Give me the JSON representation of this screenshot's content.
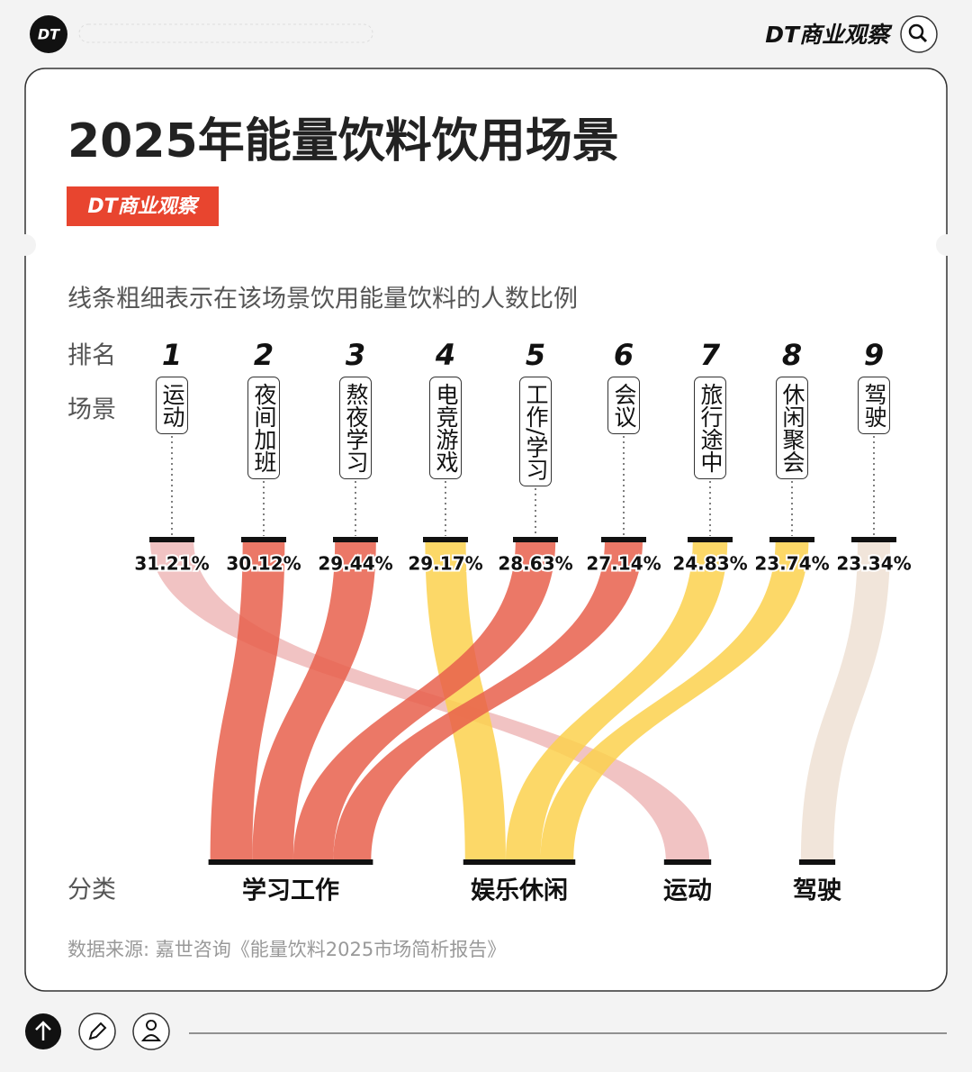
{
  "header": {
    "logo": "DT",
    "brand": "DT商业观察"
  },
  "chart_data": {
    "type": "flow",
    "title": "2025年能量饮料饮用场景",
    "badge": "DT商业观察",
    "subtitle": "线条粗细表示在该场景饮用能量饮料的人数比例",
    "rank_label": "排名",
    "scene_label": "场景",
    "category_label": "分类",
    "ranks": [
      1,
      2,
      3,
      4,
      5,
      6,
      7,
      8,
      9
    ],
    "categories": [
      "运动",
      "夜间加班",
      "熬夜学习",
      "电竞游戏",
      "工作/学习",
      "会议",
      "旅行途中",
      "休闲聚会",
      "驾驶"
    ],
    "values": [
      31.21,
      30.12,
      29.44,
      29.17,
      28.63,
      27.14,
      24.83,
      23.74,
      23.34
    ],
    "value_labels": [
      "31.21%",
      "30.12%",
      "29.44%",
      "29.17%",
      "28.63%",
      "27.14%",
      "24.83%",
      "23.74%",
      "23.34%"
    ],
    "scene_groups": [
      "运动",
      "学习工作",
      "学习工作",
      "娱乐休闲",
      "学习工作",
      "学习工作",
      "娱乐休闲",
      "娱乐休闲",
      "驾驶"
    ],
    "groups": [
      {
        "name": "学习工作",
        "color": "#e8604c"
      },
      {
        "name": "娱乐休闲",
        "color": "#fcd14d"
      },
      {
        "name": "运动",
        "color": "#efb9b9"
      },
      {
        "name": "驾驶",
        "color": "#efe1d4"
      }
    ],
    "source": "数据来源: 嘉世咨询《能量饮料2025市场简析报告》"
  }
}
